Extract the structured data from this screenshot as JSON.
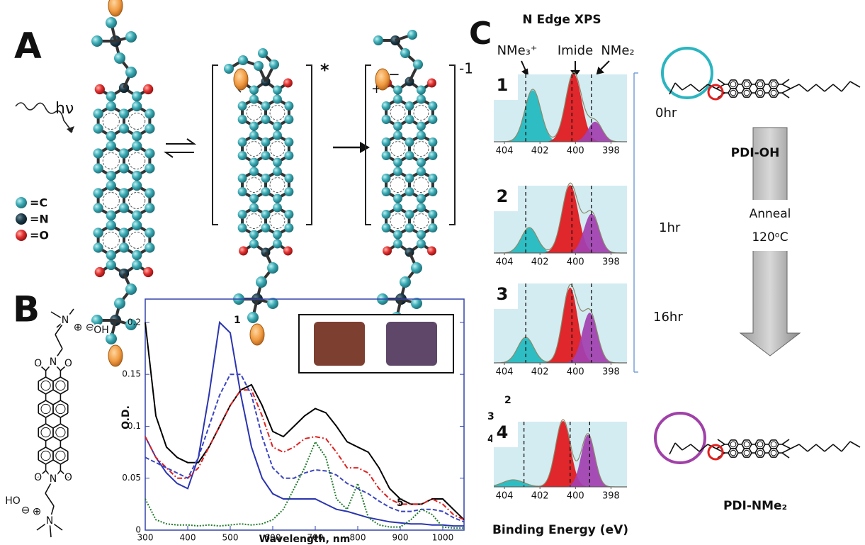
{
  "panel_labels": [
    "A",
    "B",
    "C"
  ],
  "panel_a": {
    "light": "hν",
    "legend": [
      "=C",
      "=N",
      "=O"
    ],
    "excited_mark": "*",
    "charge": "-1",
    "charges": [
      "−",
      "+"
    ]
  },
  "panel_b": {
    "structure": {
      "hydroxides": [
        "OH",
        "HO"
      ],
      "nitrogens": [
        "N",
        "N",
        "N",
        "N"
      ],
      "oxygens": [
        "O",
        "O",
        "O",
        "O"
      ],
      "charges": [
        "⊕",
        "⊖",
        "⊖",
        "⊕"
      ]
    }
  },
  "panel_c": {
    "title": "N Edge XPS",
    "peak_labels": [
      "NMe₃⁺",
      "Imide",
      "NMe₂"
    ],
    "times": [
      "0hr",
      "1hr",
      "16hr"
    ],
    "compounds": [
      "PDI-OH",
      "PDI-NMe₂"
    ],
    "process": [
      "Anneal",
      "120ᵒC"
    ]
  },
  "chart_data": [
    {
      "type": "line",
      "xlabel": "Wavelength, nm",
      "ylabel": "O.D.",
      "x": [
        300,
        325,
        350,
        375,
        400,
        425,
        450,
        475,
        500,
        525,
        550,
        575,
        600,
        625,
        650,
        675,
        700,
        725,
        750,
        775,
        800,
        825,
        850,
        875,
        900,
        925,
        950,
        975,
        1000,
        1025,
        1050
      ],
      "xlim": [
        300,
        1050
      ],
      "xticks": [
        300,
        400,
        500,
        600,
        700,
        800,
        900,
        1000
      ],
      "ylim": [
        0,
        0.217
      ],
      "yticks": [
        0,
        0.05,
        0.1,
        0.15,
        0.2
      ],
      "series": [
        {
          "name": "1",
          "color": "#2a34b0",
          "dash": "solid",
          "values": [
            0.09,
            0.07,
            0.055,
            0.045,
            0.04,
            0.07,
            0.13,
            0.2,
            0.19,
            0.13,
            0.08,
            0.05,
            0.035,
            0.03,
            0.03,
            0.03,
            0.03,
            0.025,
            0.02,
            0.018,
            0.015,
            0.012,
            0.01,
            0.008,
            0.007,
            0.006,
            0.006,
            0.005,
            0.005,
            0.004,
            0.004
          ]
        },
        {
          "name": "2",
          "color": "#000000",
          "dash": "solid",
          "values": [
            0.2,
            0.11,
            0.08,
            0.07,
            0.065,
            0.065,
            0.08,
            0.1,
            0.12,
            0.135,
            0.14,
            0.12,
            0.095,
            0.09,
            0.1,
            0.11,
            0.117,
            0.113,
            0.1,
            0.085,
            0.08,
            0.075,
            0.06,
            0.04,
            0.03,
            0.025,
            0.025,
            0.03,
            0.03,
            0.02,
            0.01
          ]
        },
        {
          "name": "3",
          "color": "#e02020",
          "dash": "dashdot",
          "values": [
            0.09,
            0.07,
            0.06,
            0.05,
            0.05,
            0.06,
            0.08,
            0.1,
            0.12,
            0.135,
            0.135,
            0.11,
            0.08,
            0.075,
            0.08,
            0.088,
            0.09,
            0.088,
            0.075,
            0.06,
            0.06,
            0.055,
            0.04,
            0.03,
            0.025,
            0.025,
            0.025,
            0.03,
            0.025,
            0.015,
            0.01
          ]
        },
        {
          "name": "4",
          "color": "#3a44c0",
          "dash": "dashed",
          "values": [
            0.07,
            0.065,
            0.06,
            0.055,
            0.05,
            0.07,
            0.1,
            0.13,
            0.15,
            0.15,
            0.13,
            0.09,
            0.06,
            0.05,
            0.05,
            0.055,
            0.058,
            0.057,
            0.053,
            0.045,
            0.04,
            0.035,
            0.028,
            0.022,
            0.018,
            0.018,
            0.02,
            0.02,
            0.018,
            0.012,
            0.008
          ]
        },
        {
          "name": "5",
          "color": "#1f7a2a",
          "dash": "dotted",
          "values": [
            0.03,
            0.01,
            0.006,
            0.005,
            0.005,
            0.004,
            0.005,
            0.004,
            0.005,
            0.006,
            0.005,
            0.006,
            0.01,
            0.02,
            0.04,
            0.06,
            0.085,
            0.07,
            0.03,
            0.02,
            0.045,
            0.012,
            0.005,
            0.003,
            0.003,
            0.01,
            0.02,
            0.015,
            0.003,
            0.002,
            0.002
          ]
        }
      ]
    },
    {
      "type": "xps",
      "title": "1",
      "xlim": [
        404.6,
        397.1
      ],
      "xticks": [
        404,
        402,
        400,
        398
      ],
      "ylim": [
        0,
        1
      ],
      "reference_lines": [
        402.8,
        400.2,
        399.1
      ],
      "peaks": [
        {
          "color": "#1fb8bf",
          "center": 402.4,
          "height": 0.72,
          "width": 0.45
        },
        {
          "color": "#e0161b",
          "center": 400.1,
          "height": 0.95,
          "width": 0.45
        },
        {
          "color": "#a23fb0",
          "center": 398.9,
          "height": 0.28,
          "width": 0.4
        }
      ]
    },
    {
      "type": "xps",
      "title": "2",
      "xlim": [
        404.6,
        397.1
      ],
      "xticks": [
        404,
        402,
        400,
        398
      ],
      "ylim": [
        0,
        1
      ],
      "reference_lines": [
        402.8,
        400.2,
        399.1
      ],
      "peaks": [
        {
          "color": "#1fb8bf",
          "center": 402.6,
          "height": 0.35,
          "width": 0.45
        },
        {
          "color": "#e0161b",
          "center": 400.3,
          "height": 0.95,
          "width": 0.45
        },
        {
          "color": "#a23fb0",
          "center": 399.1,
          "height": 0.55,
          "width": 0.42
        }
      ]
    },
    {
      "type": "xps",
      "title": "3",
      "xlim": [
        404.6,
        397.1
      ],
      "xticks": [
        404,
        402,
        400,
        398
      ],
      "ylim": [
        0,
        1
      ],
      "reference_lines": [
        402.8,
        400.2,
        399.1
      ],
      "peaks": [
        {
          "color": "#1fb8bf",
          "center": 402.8,
          "height": 0.3,
          "width": 0.45
        },
        {
          "color": "#e0161b",
          "center": 400.3,
          "height": 0.9,
          "width": 0.42
        },
        {
          "color": "#a23fb0",
          "center": 399.2,
          "height": 0.6,
          "width": 0.42
        }
      ]
    },
    {
      "type": "xps",
      "title": "4",
      "xlabel": "Binding Energy (eV)",
      "xlim": [
        404.6,
        397.1
      ],
      "xticks": [
        404,
        402,
        400,
        398
      ],
      "ylim": [
        0,
        1
      ],
      "reference_lines": [
        402.9,
        400.3,
        399.2
      ],
      "peaks": [
        {
          "color": "#1fb8bf",
          "center": 403.5,
          "height": 0.1,
          "width": 0.6
        },
        {
          "color": "#e0161b",
          "center": 400.7,
          "height": 0.95,
          "width": 0.42
        },
        {
          "color": "#a23fb0",
          "center": 399.3,
          "height": 0.75,
          "width": 0.38
        }
      ]
    }
  ]
}
